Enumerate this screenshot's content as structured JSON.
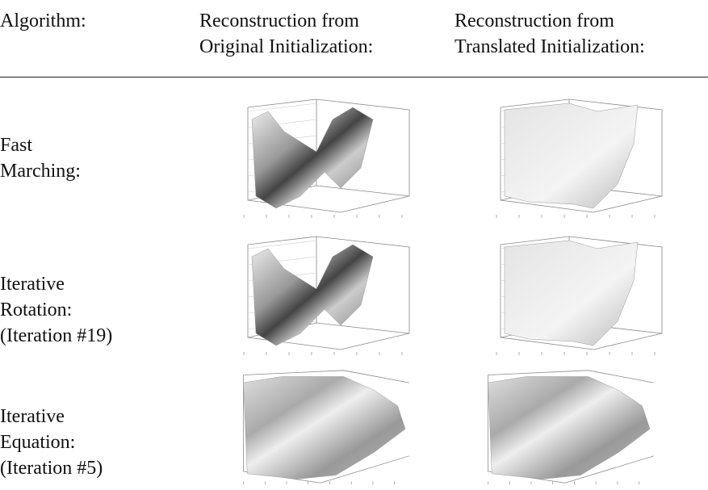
{
  "table": {
    "header": [
      [
        "Algorithm:"
      ],
      [
        "Reconstruction from",
        "Original Initialization:"
      ],
      [
        "Reconstruction from",
        "Translated Initialization:"
      ]
    ],
    "rows": [
      {
        "label": [
          "Fast",
          "Marching:"
        ]
      },
      {
        "label": [
          "Iterative",
          "Rotation:",
          "(Iteration #19)"
        ]
      },
      {
        "label": [
          "Iterative",
          "Equation:",
          "(Iteration #5)"
        ]
      }
    ]
  }
}
